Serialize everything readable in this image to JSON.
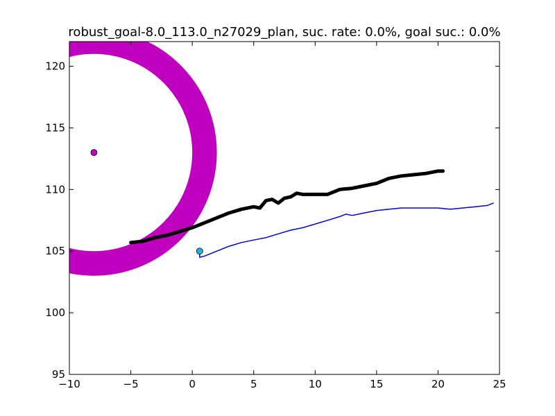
{
  "chart_data": {
    "type": "scatter",
    "title": "robust_goal-8.0_113.0_n27029_plan, suc. rate: 0.0%, goal suc.: 0.0%",
    "xlabel": "",
    "ylabel": "",
    "xlim": [
      -10,
      25
    ],
    "ylim": [
      95,
      122
    ],
    "x_ticks": [
      -10,
      -5,
      0,
      5,
      10,
      15,
      20,
      25
    ],
    "x_tick_labels": [
      "−10",
      "−5",
      "0",
      "5",
      "10",
      "15",
      "20",
      "25"
    ],
    "y_ticks": [
      95,
      100,
      105,
      110,
      115,
      120
    ],
    "y_tick_labels": [
      "95",
      "100",
      "105",
      "110",
      "115",
      "120"
    ],
    "grid": false,
    "goal": {
      "center": [
        -8.0,
        113.0
      ],
      "ring_inner_radius": 8.0,
      "ring_outer_radius": 10.0,
      "color": "#bf00bf"
    },
    "start": {
      "point": [
        0.6,
        105.0
      ],
      "color": "#1fb4d9"
    },
    "series": [
      {
        "style": "thick",
        "color": "#000000",
        "x": [
          -5.0,
          -4.0,
          -3.0,
          -2.0,
          -1.0,
          0.0,
          1.0,
          2.0,
          3.0,
          4.0,
          5.0,
          5.5,
          6.0,
          6.5,
          7.0,
          7.5,
          8.0,
          8.5,
          9.0,
          10.0,
          11.0,
          12.0,
          13.0,
          14.0,
          15.0,
          16.0,
          17.0,
          18.0,
          19.0,
          20.0,
          20.4
        ],
        "y": [
          105.7,
          105.8,
          106.1,
          106.3,
          106.6,
          106.9,
          107.3,
          107.7,
          108.1,
          108.4,
          108.6,
          108.5,
          109.1,
          109.2,
          108.9,
          109.3,
          109.4,
          109.7,
          109.6,
          109.6,
          109.6,
          110.0,
          110.1,
          110.3,
          110.5,
          110.9,
          111.1,
          111.2,
          111.3,
          111.5,
          111.5
        ]
      },
      {
        "style": "thin",
        "color": "#0000cc",
        "x": [
          0.6,
          0.6,
          1.0,
          2.0,
          3.0,
          4.0,
          5.0,
          6.0,
          7.0,
          8.0,
          9.0,
          10.0,
          11.0,
          12.0,
          12.5,
          13.0,
          14.0,
          15.0,
          16.0,
          17.0,
          18.0,
          19.0,
          20.0,
          21.0,
          22.0,
          23.0,
          24.0,
          24.5
        ],
        "y": [
          105.0,
          104.5,
          104.6,
          105.0,
          105.4,
          105.7,
          105.9,
          106.1,
          106.4,
          106.7,
          106.9,
          107.2,
          107.5,
          107.8,
          108.0,
          107.9,
          108.1,
          108.3,
          108.4,
          108.5,
          108.5,
          108.5,
          108.5,
          108.4,
          108.5,
          108.6,
          108.7,
          108.9
        ]
      }
    ]
  }
}
